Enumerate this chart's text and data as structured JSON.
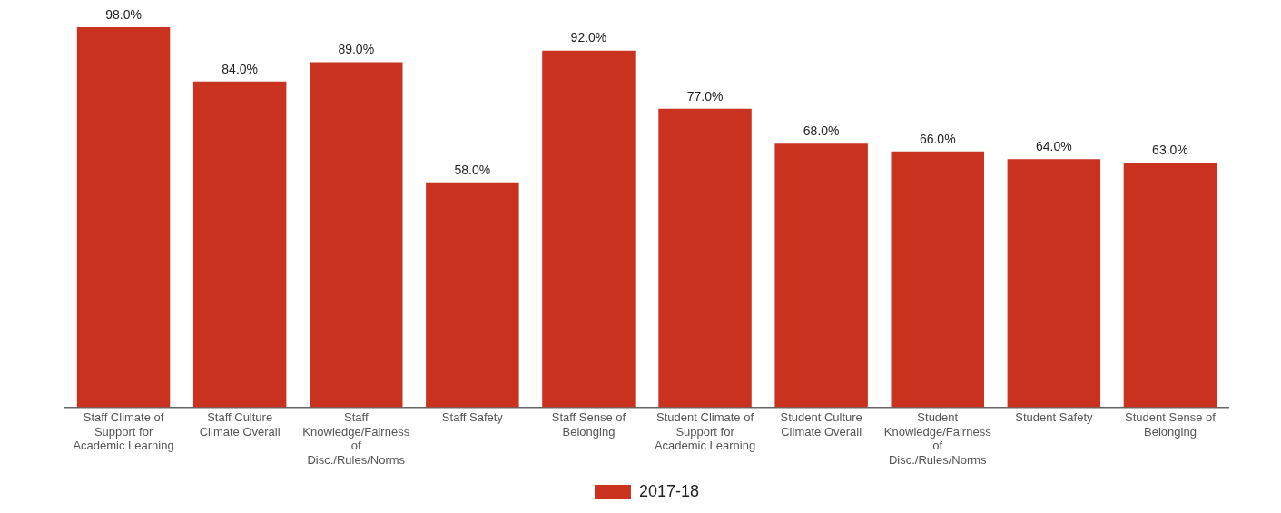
{
  "chart_data": {
    "type": "bar",
    "categories": [
      "Staff Climate of Support for Academic Learning",
      "Staff Culture Climate Overall",
      "Staff Knowledge/Fairness of Disc./Rules/Norms",
      "Staff Safety",
      "Staff Sense of Belonging",
      "Student Climate of Support for Academic Learning",
      "Student Culture Climate Overall",
      "Student Knowledge/Fairness of Disc./Rules/Norms",
      "Student Safety",
      "Student Sense of Belonging"
    ],
    "series": [
      {
        "name": "2017-18",
        "color": "#c8321f",
        "values": [
          98,
          84,
          89,
          58,
          92,
          77,
          68,
          66,
          64,
          63
        ],
        "value_labels": [
          "98.0%",
          "84.0%",
          "89.0%",
          "58.0%",
          "92.0%",
          "77.0%",
          "68.0%",
          "66.0%",
          "64.0%",
          "63.0%"
        ]
      }
    ],
    "grid": false,
    "legend": "bottom",
    "tick_labels": "x"
  }
}
